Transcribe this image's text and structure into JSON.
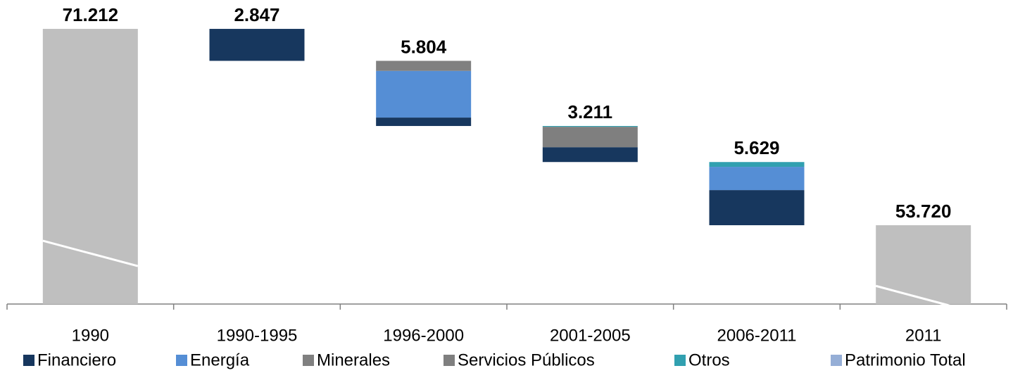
{
  "chart_data": {
    "type": "waterfall",
    "categories": [
      "1990",
      "1990-1995",
      "1996-2000",
      "2001-2005",
      "2006-2011",
      "2011"
    ],
    "values": [
      71.212,
      2.847,
      5.804,
      3.211,
      5.629,
      53.72
    ],
    "value_labels": [
      "71.212",
      "2.847",
      "5.804",
      "3.211",
      "5.629",
      "53.720"
    ],
    "total_color": "#bfbfbf",
    "series": [
      {
        "name": "Financiero",
        "color": "#17375e",
        "values": [
          null,
          2.847,
          0.75,
          1.321,
          3.13,
          null
        ]
      },
      {
        "name": "Energía",
        "color": "#558ed5",
        "values": [
          null,
          null,
          4.16,
          null,
          2.07,
          null
        ]
      },
      {
        "name": "Minerales",
        "color": "#808080",
        "values": [
          null,
          null,
          0.894,
          null,
          null,
          null
        ]
      },
      {
        "name": "Servicios Públicos",
        "color": "#7f7f7f",
        "values": [
          null,
          null,
          null,
          1.82,
          null,
          null
        ]
      },
      {
        "name": "Otros",
        "color": "#31a0b0",
        "values": [
          null,
          null,
          null,
          0.07,
          0.429,
          null
        ]
      },
      {
        "name": "Patrimonio Total",
        "color": "#95aed6",
        "values": [
          71.212,
          null,
          null,
          null,
          null,
          53.72
        ]
      }
    ],
    "ylim": [
      46.7,
      72.5
    ]
  }
}
